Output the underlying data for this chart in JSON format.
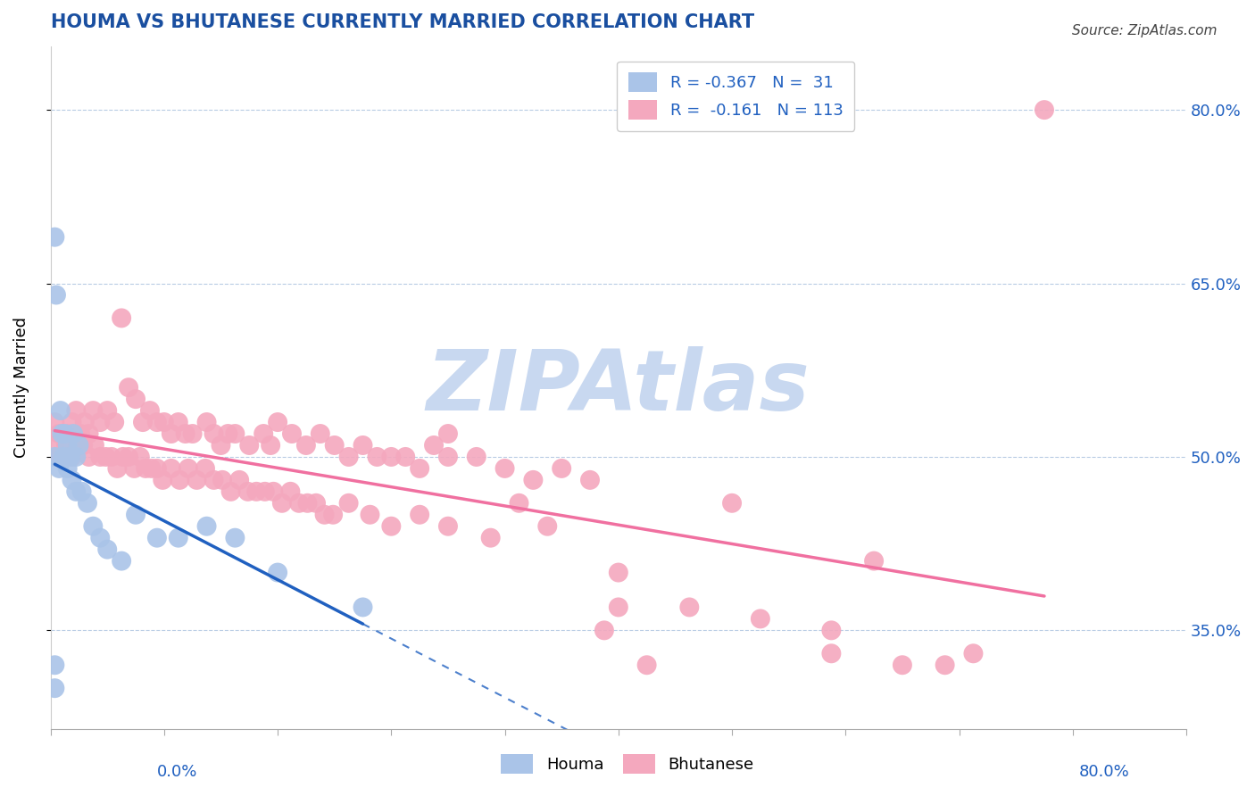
{
  "title": "HOUMA VS BHUTANESE CURRENTLY MARRIED CORRELATION CHART",
  "source": "Source: ZipAtlas.com",
  "ylabel": "Currently Married",
  "legend_houma_r": "R = -0.367",
  "legend_houma_n": "N =  31",
  "legend_bhut_r": "R =  -0.161",
  "legend_bhut_n": "N = 113",
  "x_min": 0.0,
  "x_max": 0.8,
  "y_min": 0.265,
  "y_max": 0.855,
  "yticks": [
    0.35,
    0.5,
    0.65,
    0.8
  ],
  "ytick_labels": [
    "35.0%",
    "50.0%",
    "65.0%",
    "80.0%"
  ],
  "houma_color": "#aac4e8",
  "bhutanese_color": "#f4a8be",
  "houma_line_color": "#2060c0",
  "bhutanese_line_color": "#f070a0",
  "watermark": "ZIPAtlas",
  "watermark_color": "#c8d8f0",
  "houma_x": [
    0.003,
    0.004,
    0.007,
    0.008,
    0.01,
    0.012,
    0.014,
    0.016,
    0.018,
    0.02,
    0.003,
    0.006,
    0.009,
    0.012,
    0.015,
    0.018,
    0.022,
    0.026,
    0.03,
    0.035,
    0.04,
    0.05,
    0.06,
    0.075,
    0.09,
    0.11,
    0.13,
    0.16,
    0.22,
    0.003,
    0.003
  ],
  "houma_y": [
    0.69,
    0.64,
    0.54,
    0.52,
    0.52,
    0.51,
    0.5,
    0.52,
    0.5,
    0.51,
    0.5,
    0.49,
    0.5,
    0.49,
    0.48,
    0.47,
    0.47,
    0.46,
    0.44,
    0.43,
    0.42,
    0.41,
    0.45,
    0.43,
    0.43,
    0.44,
    0.43,
    0.4,
    0.37,
    0.3,
    0.32
  ],
  "bhutanese_x": [
    0.003,
    0.006,
    0.009,
    0.012,
    0.015,
    0.018,
    0.021,
    0.024,
    0.027,
    0.03,
    0.035,
    0.04,
    0.045,
    0.05,
    0.055,
    0.06,
    0.065,
    0.07,
    0.075,
    0.08,
    0.085,
    0.09,
    0.095,
    0.1,
    0.11,
    0.115,
    0.12,
    0.125,
    0.13,
    0.14,
    0.15,
    0.155,
    0.16,
    0.17,
    0.18,
    0.19,
    0.2,
    0.21,
    0.22,
    0.23,
    0.24,
    0.25,
    0.26,
    0.27,
    0.28,
    0.3,
    0.32,
    0.34,
    0.36,
    0.38,
    0.003,
    0.007,
    0.011,
    0.015,
    0.019,
    0.023,
    0.027,
    0.031,
    0.035,
    0.039,
    0.043,
    0.047,
    0.051,
    0.055,
    0.059,
    0.063,
    0.067,
    0.071,
    0.075,
    0.079,
    0.085,
    0.091,
    0.097,
    0.103,
    0.109,
    0.115,
    0.121,
    0.127,
    0.133,
    0.139,
    0.145,
    0.151,
    0.157,
    0.163,
    0.169,
    0.175,
    0.181,
    0.187,
    0.193,
    0.199,
    0.21,
    0.225,
    0.24,
    0.26,
    0.28,
    0.31,
    0.35,
    0.4,
    0.45,
    0.5,
    0.55,
    0.6,
    0.65,
    0.4,
    0.55,
    0.63,
    0.28,
    0.33,
    0.48,
    0.58,
    0.39,
    0.42,
    0.7
  ],
  "bhutanese_y": [
    0.53,
    0.52,
    0.52,
    0.52,
    0.53,
    0.54,
    0.52,
    0.53,
    0.52,
    0.54,
    0.53,
    0.54,
    0.53,
    0.62,
    0.56,
    0.55,
    0.53,
    0.54,
    0.53,
    0.53,
    0.52,
    0.53,
    0.52,
    0.52,
    0.53,
    0.52,
    0.51,
    0.52,
    0.52,
    0.51,
    0.52,
    0.51,
    0.53,
    0.52,
    0.51,
    0.52,
    0.51,
    0.5,
    0.51,
    0.5,
    0.5,
    0.5,
    0.49,
    0.51,
    0.5,
    0.5,
    0.49,
    0.48,
    0.49,
    0.48,
    0.51,
    0.5,
    0.51,
    0.5,
    0.51,
    0.51,
    0.5,
    0.51,
    0.5,
    0.5,
    0.5,
    0.49,
    0.5,
    0.5,
    0.49,
    0.5,
    0.49,
    0.49,
    0.49,
    0.48,
    0.49,
    0.48,
    0.49,
    0.48,
    0.49,
    0.48,
    0.48,
    0.47,
    0.48,
    0.47,
    0.47,
    0.47,
    0.47,
    0.46,
    0.47,
    0.46,
    0.46,
    0.46,
    0.45,
    0.45,
    0.46,
    0.45,
    0.44,
    0.45,
    0.44,
    0.43,
    0.44,
    0.4,
    0.37,
    0.36,
    0.33,
    0.32,
    0.33,
    0.37,
    0.35,
    0.32,
    0.52,
    0.46,
    0.46,
    0.41,
    0.35,
    0.32,
    0.8
  ]
}
